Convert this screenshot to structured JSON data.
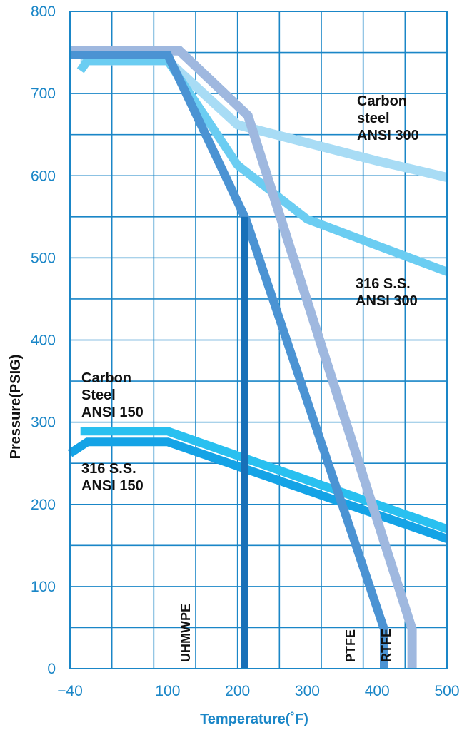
{
  "chart_data": {
    "type": "line",
    "xlabel": "Temperature(˚F)",
    "ylabel": "Pressure(PSIG)",
    "xlim": [
      -40,
      500
    ],
    "ylim": [
      0,
      800
    ],
    "x_tick_labels": [
      "−40",
      "100",
      "200",
      "300",
      "400",
      "500"
    ],
    "y_tick_labels": [
      "0",
      "100",
      "200",
      "300",
      "400",
      "500",
      "600",
      "700",
      "800"
    ],
    "grid": true,
    "series": [
      {
        "name": "Carbon steel ANSI 300",
        "color": "#a8dcf5",
        "points": [
          [
            -25,
            740
          ],
          [
            100,
            740
          ],
          [
            200,
            662
          ],
          [
            300,
            640
          ],
          [
            400,
            618
          ],
          [
            500,
            598
          ]
        ]
      },
      {
        "name": "316 S.S. ANSI 300",
        "color": "#6bcdf2",
        "points": [
          [
            -25,
            728
          ],
          [
            -15,
            740
          ],
          [
            100,
            740
          ],
          [
            200,
            613
          ],
          [
            300,
            547
          ],
          [
            400,
            515
          ],
          [
            500,
            483
          ]
        ]
      },
      {
        "name": "Carbon Steel ANSI 150",
        "color": "#29c0f0",
        "points": [
          [
            -25,
            289
          ],
          [
            100,
            289
          ],
          [
            500,
            170
          ]
        ]
      },
      {
        "name": "316 S.S. ANSI 150",
        "color": "#14a3e6",
        "points": [
          [
            -40,
            262
          ],
          [
            -15,
            276
          ],
          [
            100,
            276
          ],
          [
            500,
            158
          ]
        ]
      },
      {
        "name": "RTFE",
        "color": "#9fb8df",
        "points": [
          [
            -40,
            752
          ],
          [
            117,
            752
          ],
          [
            215,
            673
          ],
          [
            450,
            48
          ],
          [
            450,
            0
          ]
        ]
      },
      {
        "name": "PTFE",
        "color": "#4b93d3",
        "points": [
          [
            -40,
            747
          ],
          [
            100,
            747
          ],
          [
            212,
            547
          ],
          [
            410,
            48
          ],
          [
            410,
            0
          ]
        ]
      },
      {
        "name": "UHMWPE",
        "color": "#1870b8",
        "points": [
          [
            210,
            0
          ],
          [
            210,
            550
          ]
        ]
      }
    ],
    "annotations": {
      "carbon_300": [
        "Carbon",
        "steel",
        "ANSI 300"
      ],
      "ss_300": [
        "316 S.S.",
        "ANSI 300"
      ],
      "carbon_150": [
        "Carbon",
        "Steel",
        "ANSI 150"
      ],
      "ss_150": [
        "316 S.S.",
        "ANSI 150"
      ],
      "uhmwpe": "UHMWPE",
      "ptfe": "PTFE",
      "rtfe": "RTFE"
    }
  }
}
